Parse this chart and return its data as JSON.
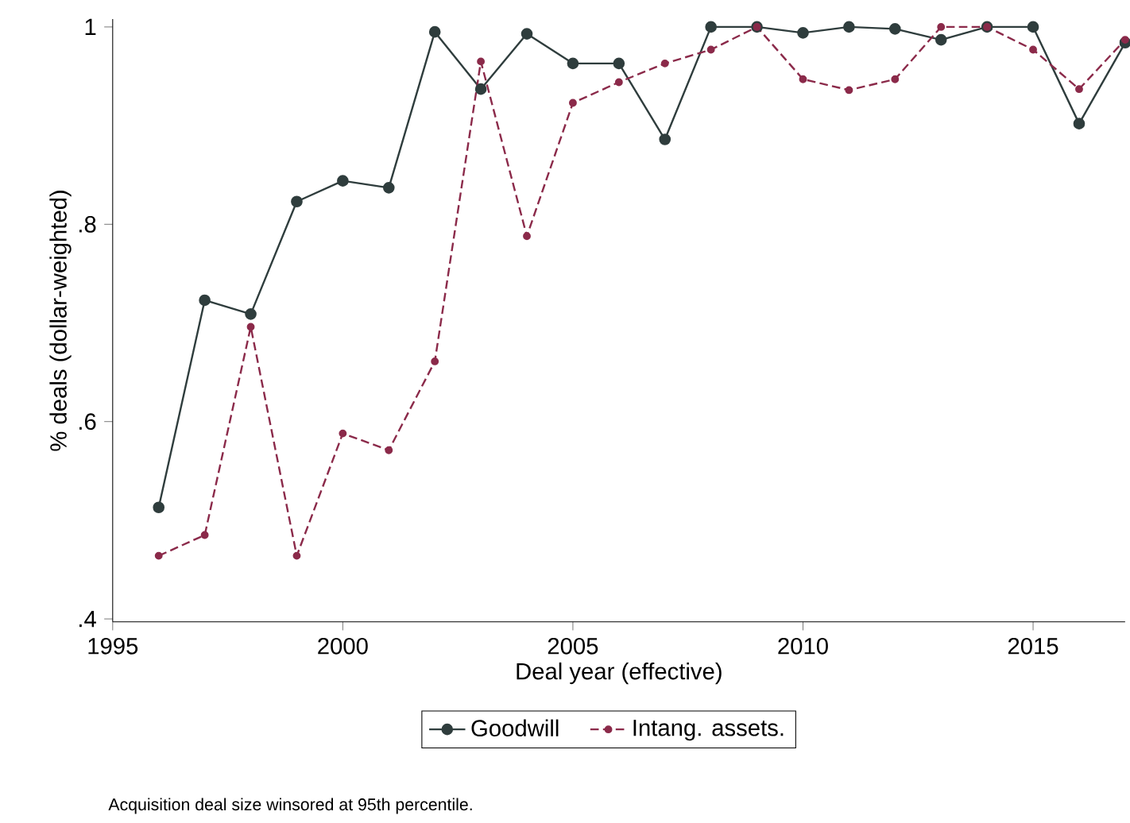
{
  "chart_data": {
    "type": "line",
    "xlabel": "Deal year (effective)",
    "ylabel": "% deals (dollar-weighted)",
    "x": [
      1996,
      1997,
      1998,
      1999,
      2000,
      2001,
      2002,
      2003,
      2004,
      2005,
      2006,
      2007,
      2008,
      2009,
      2010,
      2011,
      2012,
      2013,
      2014,
      2015,
      2016,
      2017
    ],
    "series": [
      {
        "name": "Goodwill",
        "color": "#2f3d3d",
        "line_style": "solid",
        "values": [
          0.513,
          0.723,
          0.709,
          0.823,
          0.844,
          0.837,
          0.995,
          0.937,
          0.993,
          0.963,
          0.963,
          0.886,
          1.0,
          1.0,
          0.994,
          1.0,
          0.998,
          0.987,
          1.0,
          1.0,
          0.902,
          0.984
        ]
      },
      {
        "name": "Intang. assets.",
        "color": "#8b2a4a",
        "line_style": "dashed",
        "values": [
          0.464,
          0.485,
          0.696,
          0.464,
          0.588,
          0.571,
          0.661,
          0.965,
          0.788,
          0.923,
          0.944,
          0.963,
          0.977,
          1.0,
          0.947,
          0.936,
          0.947,
          1.0,
          1.0,
          0.977,
          0.937,
          0.987
        ]
      }
    ],
    "xlim": [
      1995,
      2017
    ],
    "ylim": [
      0.397,
      1.008
    ],
    "xticks": [
      1995,
      2000,
      2005,
      2010,
      2015
    ],
    "yticks": [
      {
        "value": 0.4,
        "label": ".4"
      },
      {
        "value": 0.6,
        "label": ".6"
      },
      {
        "value": 0.8,
        "label": ".8"
      },
      {
        "value": 1,
        "label": "1"
      }
    ],
    "marker": "circle",
    "legend": "bottom",
    "grid": false,
    "annotations": [
      "Acquisition deal size winsored at 95th percentile."
    ]
  }
}
